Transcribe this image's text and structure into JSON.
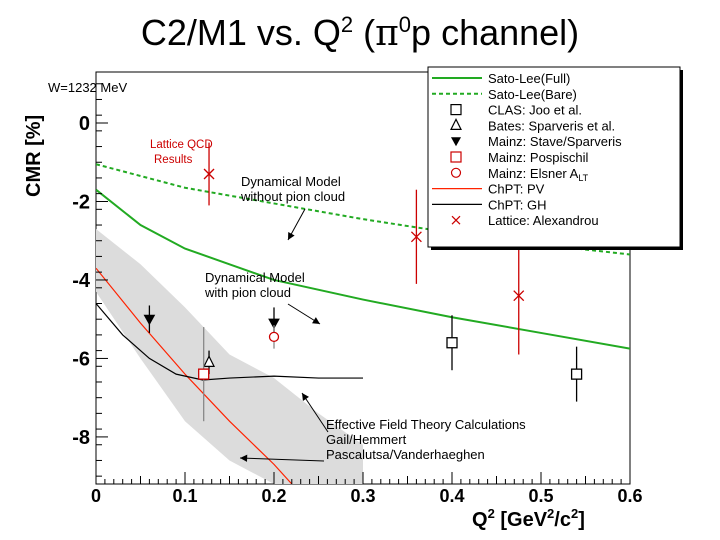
{
  "slide": {
    "title_main": "C2/M1 vs. Q",
    "title_sup": "2",
    "title_open": " (",
    "title_pi": "π",
    "title_pi_sup": "0",
    "title_rest": "p channel)"
  },
  "chart_data": {
    "type": "scatter",
    "title": "",
    "condition_label": "W=1232 MeV",
    "xlabel_main": "Q",
    "xlabel_sup": "2",
    "xlabel_unit_open": " [GeV",
    "xlabel_unit_sup1": "2",
    "xlabel_unit_mid": "/c",
    "xlabel_unit_sup2": "2",
    "xlabel_unit_close": "]",
    "ylabel": "CMR [%]",
    "xlim": [
      0,
      0.6
    ],
    "ylim": [
      -9.2,
      1.3
    ],
    "x_ticks": [
      0,
      0.1,
      0.2,
      0.3,
      0.4,
      0.5,
      0.6
    ],
    "x_tick_labels": [
      "0",
      "0.1",
      "0.2",
      "0.3",
      "0.4",
      "0.5",
      "0.6"
    ],
    "y_ticks": [
      0,
      -2,
      -4,
      -6,
      -8
    ],
    "y_tick_labels": [
      "0",
      "-2",
      "-4",
      "-6",
      "-8"
    ],
    "series": [
      {
        "name": "Sato-Lee(Full)",
        "style": "solid",
        "color": "#22aa22",
        "points": [
          [
            0,
            -1.7
          ],
          [
            0.05,
            -2.6
          ],
          [
            0.1,
            -3.2
          ],
          [
            0.15,
            -3.6
          ],
          [
            0.2,
            -4.0
          ],
          [
            0.3,
            -4.5
          ],
          [
            0.4,
            -4.95
          ],
          [
            0.5,
            -5.35
          ],
          [
            0.6,
            -5.75
          ]
        ]
      },
      {
        "name": "Sato-Lee(Bare)",
        "style": "dashed",
        "color": "#22aa22",
        "points": [
          [
            0,
            -1.05
          ],
          [
            0.1,
            -1.65
          ],
          [
            0.2,
            -2.05
          ],
          [
            0.3,
            -2.45
          ],
          [
            0.4,
            -2.8
          ],
          [
            0.5,
            -3.1
          ],
          [
            0.6,
            -3.35
          ]
        ]
      },
      {
        "name": "CLAS: Joo et al.",
        "marker": "open-square",
        "color": "#000000",
        "points": [
          [
            0.4,
            -5.6,
            0.7
          ],
          [
            0.54,
            -6.4,
            0.7
          ]
        ]
      },
      {
        "name": "Bates: Sparveris et al.",
        "marker": "open-triangle",
        "color": "#000000",
        "points": [
          [
            0.127,
            -6.1,
            0.3
          ]
        ]
      },
      {
        "name": "Mainz: Stave/Sparveris",
        "marker": "filled-triangle-down",
        "color": "#000000",
        "points": [
          [
            0.06,
            -5.0,
            0.35
          ],
          [
            0.2,
            -5.1,
            0.4
          ]
        ]
      },
      {
        "name": "Mainz: Pospischil",
        "marker": "open-square",
        "color": "#cc0000",
        "points": [
          [
            0.121,
            -6.4,
            1.2
          ]
        ]
      },
      {
        "name": "Mainz: Elsner A",
        "name_sub": "LT",
        "marker": "open-circle",
        "color": "#cc0000",
        "points": [
          [
            0.2,
            -5.45,
            0.3
          ]
        ]
      },
      {
        "name": "ChPT: PV",
        "style": "solid",
        "color": "#ff2200",
        "points": [
          [
            0,
            -3.7
          ],
          [
            0.05,
            -5.1
          ],
          [
            0.1,
            -6.4
          ],
          [
            0.15,
            -7.6
          ],
          [
            0.2,
            -8.7
          ],
          [
            0.22,
            -9.2
          ]
        ],
        "band": [
          [
            0,
            -2.7,
            -4.3
          ],
          [
            0.05,
            -3.6,
            -6.0
          ],
          [
            0.1,
            -4.7,
            -7.6
          ],
          [
            0.15,
            -5.9,
            -8.6
          ],
          [
            0.2,
            -6.5,
            -9.2
          ],
          [
            0.25,
            -7.4,
            -9.2
          ],
          [
            0.3,
            -8.2,
            -9.2
          ]
        ]
      },
      {
        "name": "ChPT: GH",
        "style": "solid",
        "color": "#000000",
        "points": [
          [
            0,
            -4.6
          ],
          [
            0.03,
            -5.4
          ],
          [
            0.06,
            -6.0
          ],
          [
            0.09,
            -6.4
          ],
          [
            0.12,
            -6.55
          ],
          [
            0.15,
            -6.5
          ],
          [
            0.2,
            -6.45
          ],
          [
            0.25,
            -6.5
          ],
          [
            0.3,
            -6.5
          ]
        ]
      },
      {
        "name": "Lattice: Alexandrou",
        "marker": "cross",
        "color": "#cc0000",
        "points": [
          [
            0.127,
            -1.3,
            0.8
          ],
          [
            0.36,
            -2.9,
            1.2
          ],
          [
            0.475,
            -4.4,
            1.5
          ]
        ]
      }
    ],
    "annotations": [
      {
        "text_lines": [
          "Lattice QCD",
          "Results"
        ],
        "color": "#cc0000"
      },
      {
        "text_lines": [
          "Dynamical Model",
          "without pion cloud"
        ],
        "color": "#000000"
      },
      {
        "text_lines": [
          "Dynamical Model",
          "with pion cloud"
        ],
        "color": "#000000"
      },
      {
        "text_lines": [
          "Effective Field Theory Calculations",
          "Gail/Hemmert",
          "Pascalutsa/Vanderhaeghen"
        ],
        "color": "#000000"
      }
    ]
  }
}
